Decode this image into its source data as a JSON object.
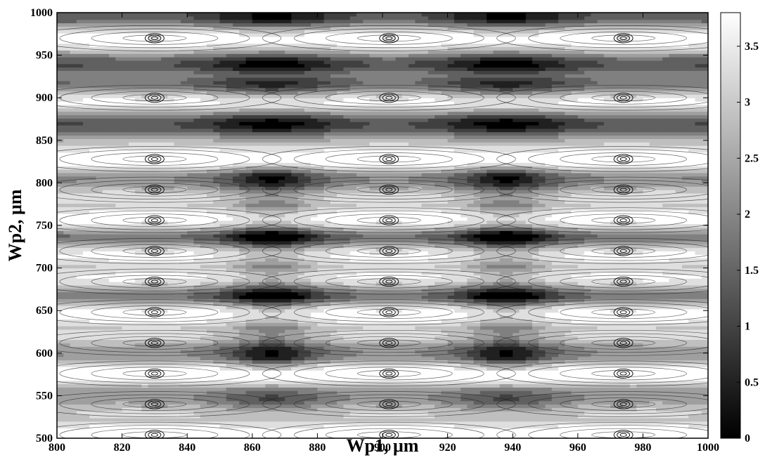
{
  "chart_data": {
    "type": "heatmap",
    "subtype": "filled-contour",
    "title": "",
    "xlabel": "Wp1, μm",
    "ylabel": "Wp2, μm",
    "xlim": [
      800,
      1000
    ],
    "ylim": [
      500,
      1000
    ],
    "x_ticks": [
      800,
      820,
      840,
      860,
      880,
      900,
      920,
      940,
      960,
      980,
      1000
    ],
    "y_ticks": [
      500,
      550,
      600,
      650,
      700,
      750,
      800,
      850,
      900,
      950,
      1000
    ],
    "colorbar": {
      "range": [
        0,
        3.8
      ],
      "ticks": [
        0,
        0.5,
        1,
        1.5,
        2,
        2.5,
        3,
        3.5
      ],
      "tick_labels": [
        "0",
        "0.5",
        "1",
        "1.5",
        "2",
        "2.5",
        "3",
        "3.5"
      ],
      "colormap": "gray",
      "low_color": "#000000",
      "high_color": "#ffffff"
    },
    "grid": false,
    "pattern": {
      "x_period": 72,
      "x_bright_centers": [
        830,
        902,
        974
      ],
      "x_dark_centers": [
        866,
        938
      ],
      "y_bright_bands": [
        504,
        540,
        576,
        612,
        648,
        684,
        720,
        756,
        792,
        828,
        900,
        970
      ],
      "y_dark_bands": [
        545,
        605,
        670,
        735,
        800,
        870,
        915,
        940,
        995
      ],
      "value_min": 0,
      "value_max": 3.8
    }
  }
}
